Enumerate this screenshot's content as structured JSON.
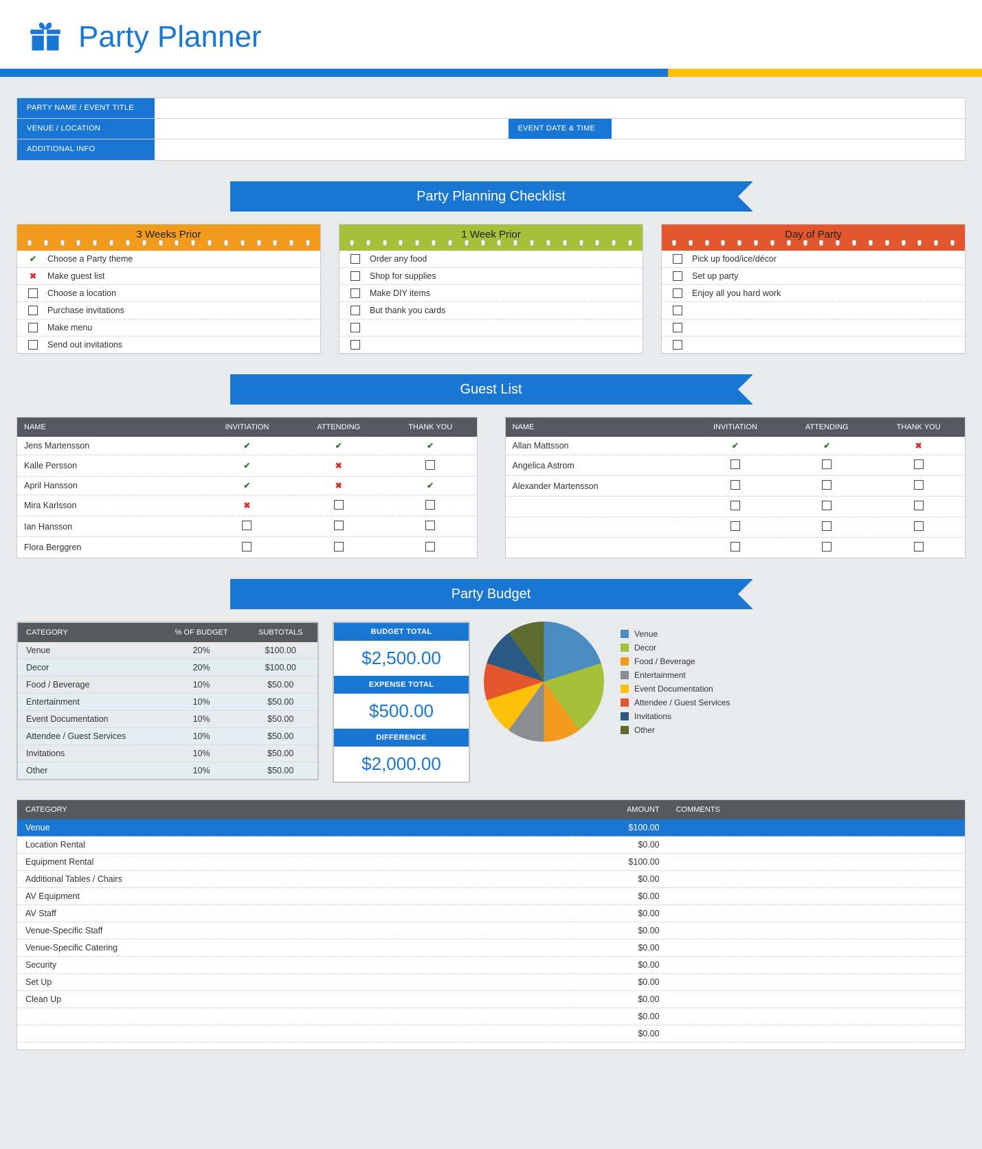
{
  "header": {
    "title": "Party Planner",
    "icon_color": "#1976d2",
    "bar_blue": "#1976d2",
    "bar_yellow": "#ffc107"
  },
  "info": {
    "labels": {
      "party_name": "PARTY NAME / EVENT TITLE",
      "venue": "VENUE / LOCATION",
      "event_date": "EVENT DATE & TIME",
      "additional": "ADDITIONAL INFO"
    },
    "values": {
      "party_name": "",
      "venue": "",
      "event_date": "",
      "additional": ""
    }
  },
  "sections": {
    "checklist_title": "Party Planning Checklist",
    "guest_title": "Guest List",
    "budget_title": "Party Budget"
  },
  "checklist": {
    "cards": [
      {
        "title": "3 Weeks Prior",
        "color": "orange",
        "items": [
          {
            "state": "check",
            "text": "Choose a Party theme"
          },
          {
            "state": "cross",
            "text": "Make guest list"
          },
          {
            "state": "box",
            "text": "Choose a location"
          },
          {
            "state": "box",
            "text": "Purchase invitations"
          },
          {
            "state": "box",
            "text": "Make menu"
          },
          {
            "state": "box",
            "text": "Send out invitations"
          }
        ]
      },
      {
        "title": "1 Week Prior",
        "color": "green",
        "items": [
          {
            "state": "box",
            "text": "Order any food"
          },
          {
            "state": "box",
            "text": "Shop for supplies"
          },
          {
            "state": "box",
            "text": "Make DIY items"
          },
          {
            "state": "box",
            "text": "But thank you cards"
          },
          {
            "state": "box",
            "text": ""
          },
          {
            "state": "box",
            "text": ""
          }
        ]
      },
      {
        "title": "Day of Party",
        "color": "red",
        "items": [
          {
            "state": "box",
            "text": "Pick up food/ice/décor"
          },
          {
            "state": "box",
            "text": "Set up party"
          },
          {
            "state": "box",
            "text": "Enjoy all you hard work"
          },
          {
            "state": "box",
            "text": ""
          },
          {
            "state": "box",
            "text": ""
          },
          {
            "state": "box",
            "text": ""
          }
        ]
      }
    ]
  },
  "guests": {
    "columns": [
      "NAME",
      "INVITIATION",
      "ATTENDING",
      "THANK YOU"
    ],
    "left": [
      {
        "name": "Jens Martensson",
        "inv": "check",
        "att": "check",
        "ty": "check"
      },
      {
        "name": "Kalle Persson",
        "inv": "check",
        "att": "cross",
        "ty": "box"
      },
      {
        "name": "April Hansson",
        "inv": "check",
        "att": "cross",
        "ty": "check"
      },
      {
        "name": "Mira Karlsson",
        "inv": "cross",
        "att": "box",
        "ty": "box"
      },
      {
        "name": "Ian Hansson",
        "inv": "box",
        "att": "box",
        "ty": "box"
      },
      {
        "name": "Flora Berggren",
        "inv": "box",
        "att": "box",
        "ty": "box"
      }
    ],
    "right": [
      {
        "name": "Allan Mattsson",
        "inv": "check",
        "att": "check",
        "ty": "cross"
      },
      {
        "name": "Angelica Astrom",
        "inv": "box",
        "att": "box",
        "ty": "box"
      },
      {
        "name": "Alexander Martensson",
        "inv": "box",
        "att": "box",
        "ty": "box"
      },
      {
        "name": "",
        "inv": "box",
        "att": "box",
        "ty": "box"
      },
      {
        "name": "",
        "inv": "box",
        "att": "box",
        "ty": "box"
      },
      {
        "name": "",
        "inv": "box",
        "att": "box",
        "ty": "box"
      }
    ]
  },
  "budget": {
    "columns": [
      "CATEGORY",
      "% OF BUDGET",
      "SUBTOTALS"
    ],
    "rows": [
      {
        "cat": "Venue",
        "pct": "20%",
        "sub": "$100.00",
        "color": "#4a8bc2"
      },
      {
        "cat": "Decor",
        "pct": "20%",
        "sub": "$100.00",
        "color": "#a6c039"
      },
      {
        "cat": "Food / Beverage",
        "pct": "10%",
        "sub": "$50.00",
        "color": "#f29b1d"
      },
      {
        "cat": "Entertainment",
        "pct": "10%",
        "sub": "$50.00",
        "color": "#8a8d91"
      },
      {
        "cat": "Event Documentation",
        "pct": "10%",
        "sub": "$50.00",
        "color": "#ffc107"
      },
      {
        "cat": "Attendee / Guest Services",
        "pct": "10%",
        "sub": "$50.00",
        "color": "#e4572e"
      },
      {
        "cat": "Invitations",
        "pct": "10%",
        "sub": "$50.00",
        "color": "#2a5a84"
      },
      {
        "cat": "Other",
        "pct": "10%",
        "sub": "$50.00",
        "color": "#5c6b2e"
      }
    ],
    "totals": {
      "budget_label": "BUDGET TOTAL",
      "budget_val": "$2,500.00",
      "expense_label": "EXPENSE TOTAL",
      "expense_val": "$500.00",
      "diff_label": "DIFFERENCE",
      "diff_val": "$2,000.00"
    },
    "pie": {
      "slices_pct": [
        20,
        20,
        10,
        10,
        10,
        10,
        10,
        10
      ]
    }
  },
  "expenses": {
    "columns": [
      "CATEGORY",
      "AMOUNT",
      "COMMENTS"
    ],
    "section": {
      "name": "Venue",
      "amount": "$100.00"
    },
    "rows": [
      {
        "name": "Location Rental",
        "amount": "$0.00"
      },
      {
        "name": "Equipment Rental",
        "amount": "$100.00"
      },
      {
        "name": "Additional Tables / Chairs",
        "amount": "$0.00"
      },
      {
        "name": "AV Equipment",
        "amount": "$0.00"
      },
      {
        "name": "AV Staff",
        "amount": "$0.00"
      },
      {
        "name": "Venue-Specific Staff",
        "amount": "$0.00"
      },
      {
        "name": "Venue-Specific Catering",
        "amount": "$0.00"
      },
      {
        "name": "Security",
        "amount": "$0.00"
      },
      {
        "name": "Set Up",
        "amount": "$0.00"
      },
      {
        "name": "Clean Up",
        "amount": "$0.00"
      },
      {
        "name": "",
        "amount": "$0.00"
      },
      {
        "name": "",
        "amount": "$0.00"
      },
      {
        "name": "",
        "amount": ""
      }
    ]
  }
}
